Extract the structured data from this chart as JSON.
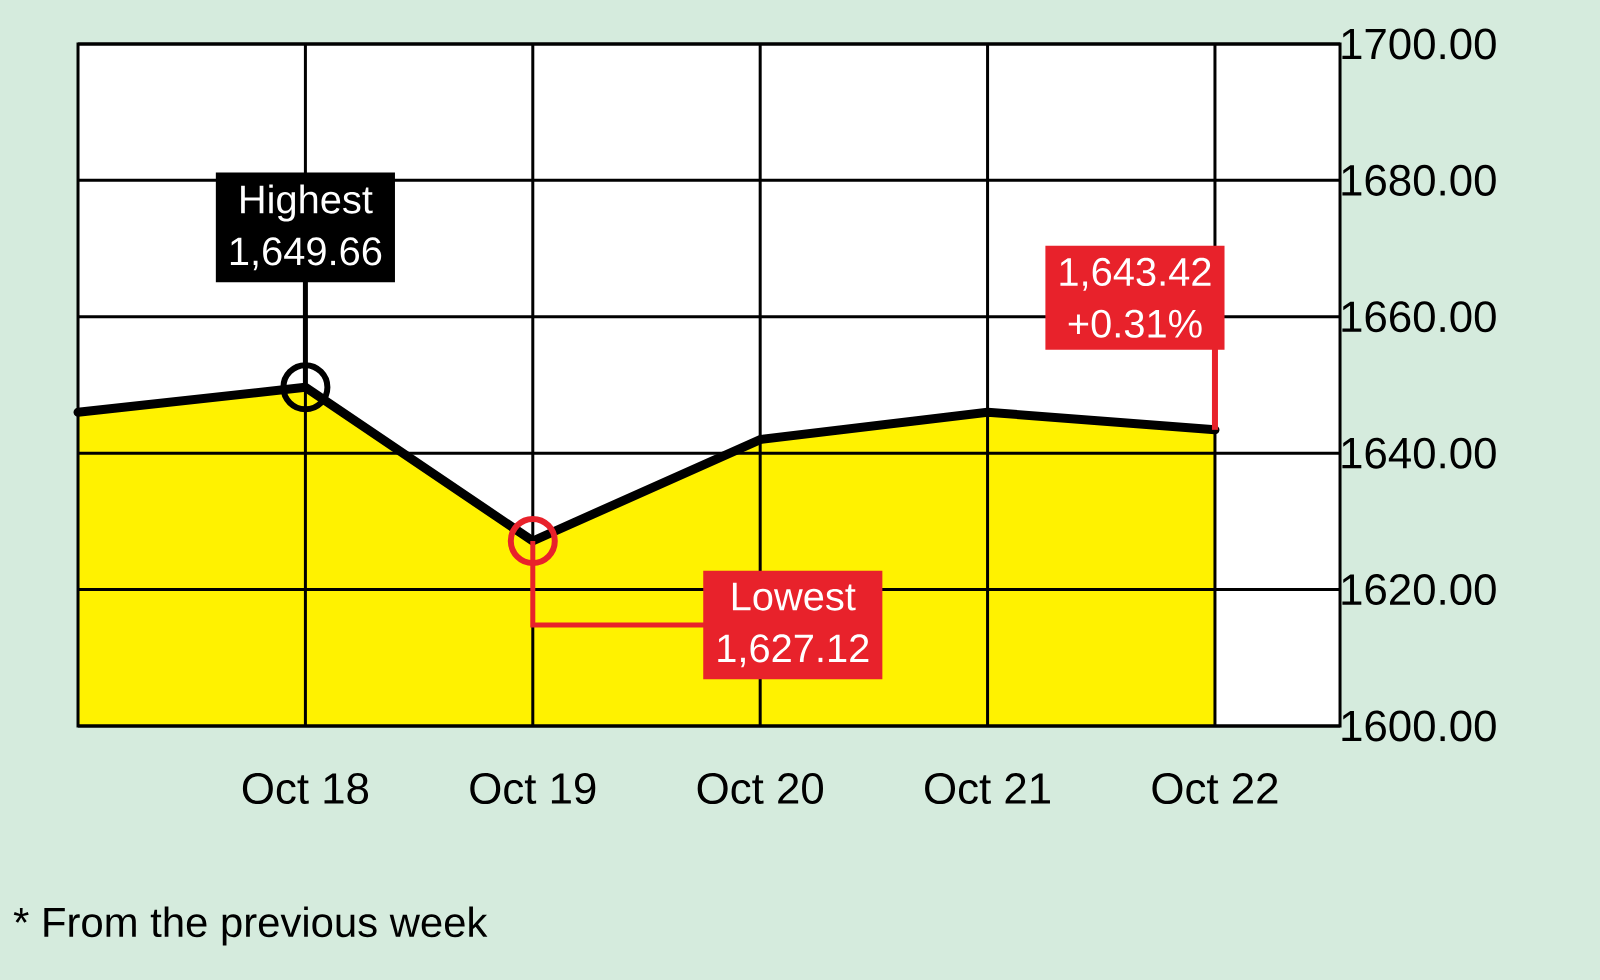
{
  "chart_data": {
    "type": "area",
    "categories": [
      null,
      "Oct 18",
      "Oct 19",
      "Oct 20",
      "Oct 21",
      "Oct 22"
    ],
    "ylim": [
      1600,
      1700
    ],
    "yticks": [
      {
        "value": 1600,
        "label": "1600.00"
      },
      {
        "value": 1620,
        "label": "1620.00"
      },
      {
        "value": 1640,
        "label": "1640.00"
      },
      {
        "value": 1660,
        "label": "1660.00"
      },
      {
        "value": 1680,
        "label": "1680.00"
      },
      {
        "value": 1700,
        "label": "1700.00"
      }
    ],
    "series": [
      {
        "color": "#fff200",
        "values": [
          1646,
          1649.66,
          1627.12,
          1642,
          1646,
          1643.42
        ]
      }
    ],
    "grid": true,
    "annotations": [
      {
        "text": "Highest",
        "x": "Oct 18",
        "y": 1649.66
      },
      {
        "text": "1,649.66",
        "x": "Oct 18",
        "y": 1649.66
      },
      {
        "text": "Lowest",
        "x": "Oct 19",
        "y": 1627.12
      },
      {
        "text": "1,627.12",
        "x": "Oct 19",
        "y": 1627.12
      },
      {
        "text": "1,643.42",
        "x": "Oct 22",
        "y": 1643.42
      },
      {
        "text": "+0.31%",
        "x": "Oct 22",
        "y": 1643.42
      },
      "* From the previous week"
    ]
  }
}
